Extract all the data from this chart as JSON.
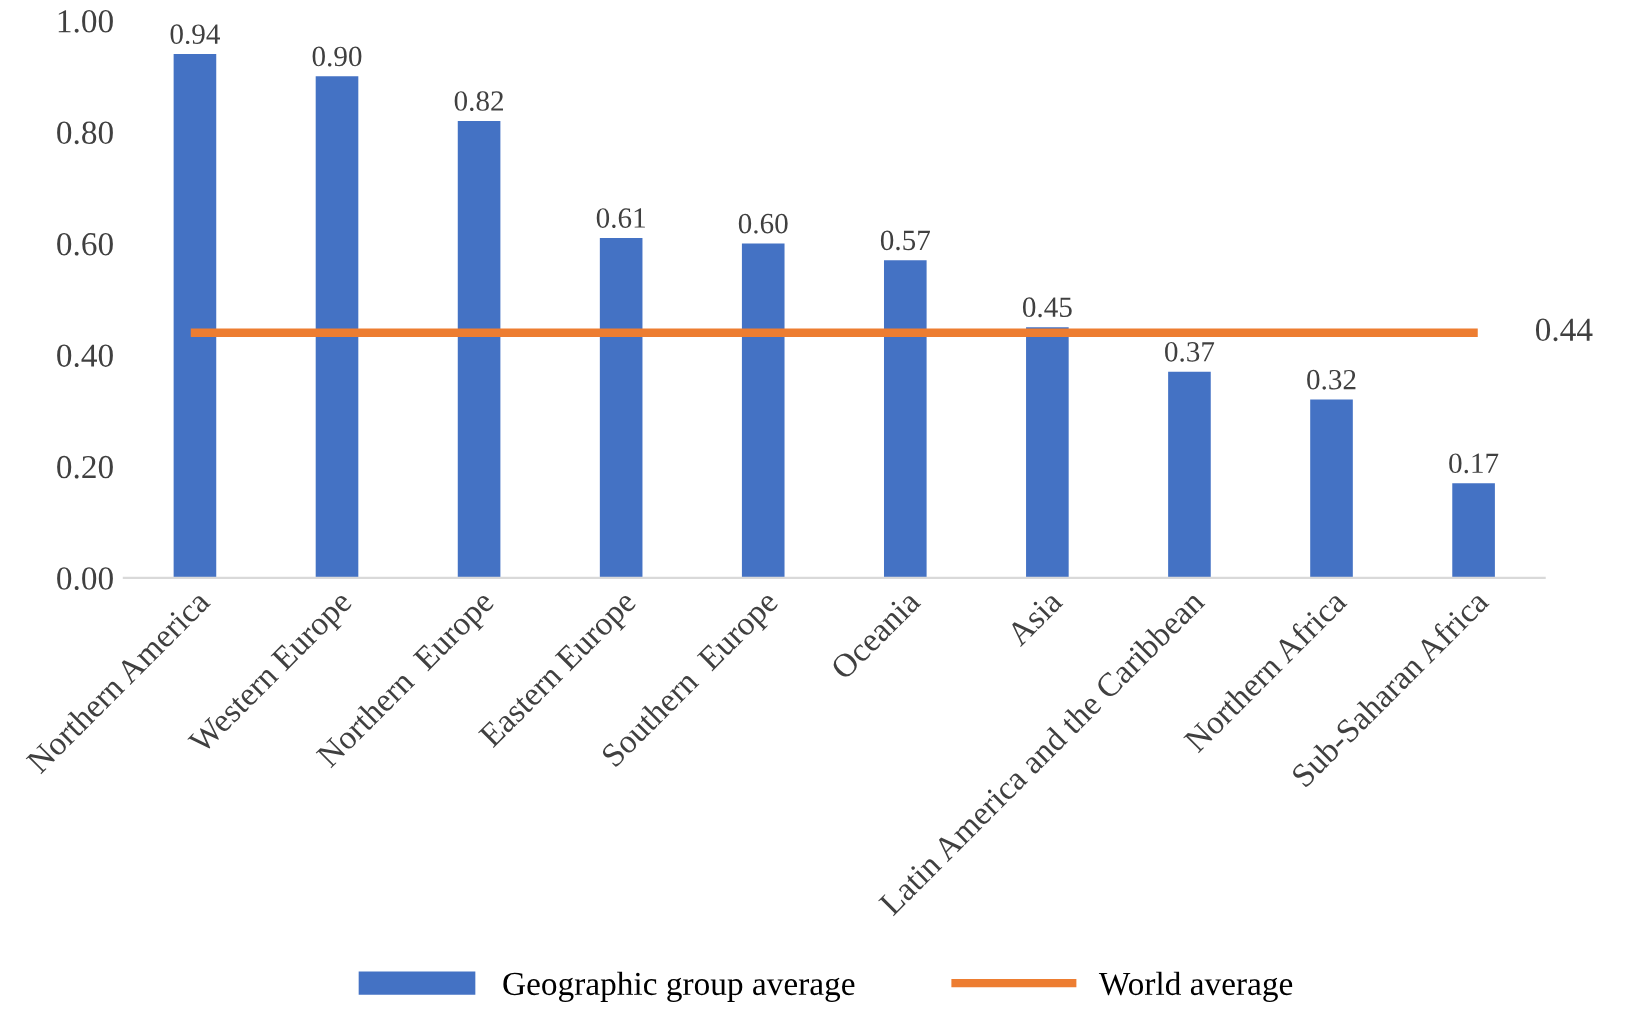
{
  "chart_data": {
    "type": "bar",
    "categories": [
      "Northern America",
      "Western Europe",
      "Northern  Europe",
      "Eastern Europe",
      "Southern  Europe",
      "Oceania",
      "Asia",
      "Latin America and the Caribbean",
      "Northern Africa",
      "Sub-Saharan Africa"
    ],
    "series": [
      {
        "name": "Geographic group average",
        "color": "#4472c4",
        "values": [
          0.94,
          0.9,
          0.82,
          0.61,
          0.6,
          0.57,
          0.45,
          0.37,
          0.32,
          0.17
        ],
        "value_labels": [
          "0.94",
          "0.90",
          "0.82",
          "0.61",
          "0.60",
          "0.57",
          "0.45",
          "0.37",
          "0.32",
          "0.17"
        ]
      },
      {
        "name": "World average",
        "type": "line",
        "color": "#ed7d31",
        "marker": "none",
        "values": [
          0.44,
          0.44,
          0.44,
          0.44,
          0.44,
          0.44,
          0.44,
          0.44,
          0.44,
          0.44
        ],
        "value_labels": [
          null,
          null,
          null,
          null,
          null,
          null,
          null,
          null,
          null,
          "0.44"
        ]
      }
    ],
    "ylim": [
      0,
      1.0
    ],
    "yticks": [
      {
        "value": 0,
        "label": "0.00"
      },
      {
        "value": 0.2,
        "label": "0.20"
      },
      {
        "value": 0.4,
        "label": "0.40"
      },
      {
        "value": 0.6,
        "label": "0.60"
      },
      {
        "value": 0.8,
        "label": "0.80"
      },
      {
        "value": 1.0,
        "label": "1.00"
      }
    ],
    "grid": false,
    "legend": "bottom"
  }
}
